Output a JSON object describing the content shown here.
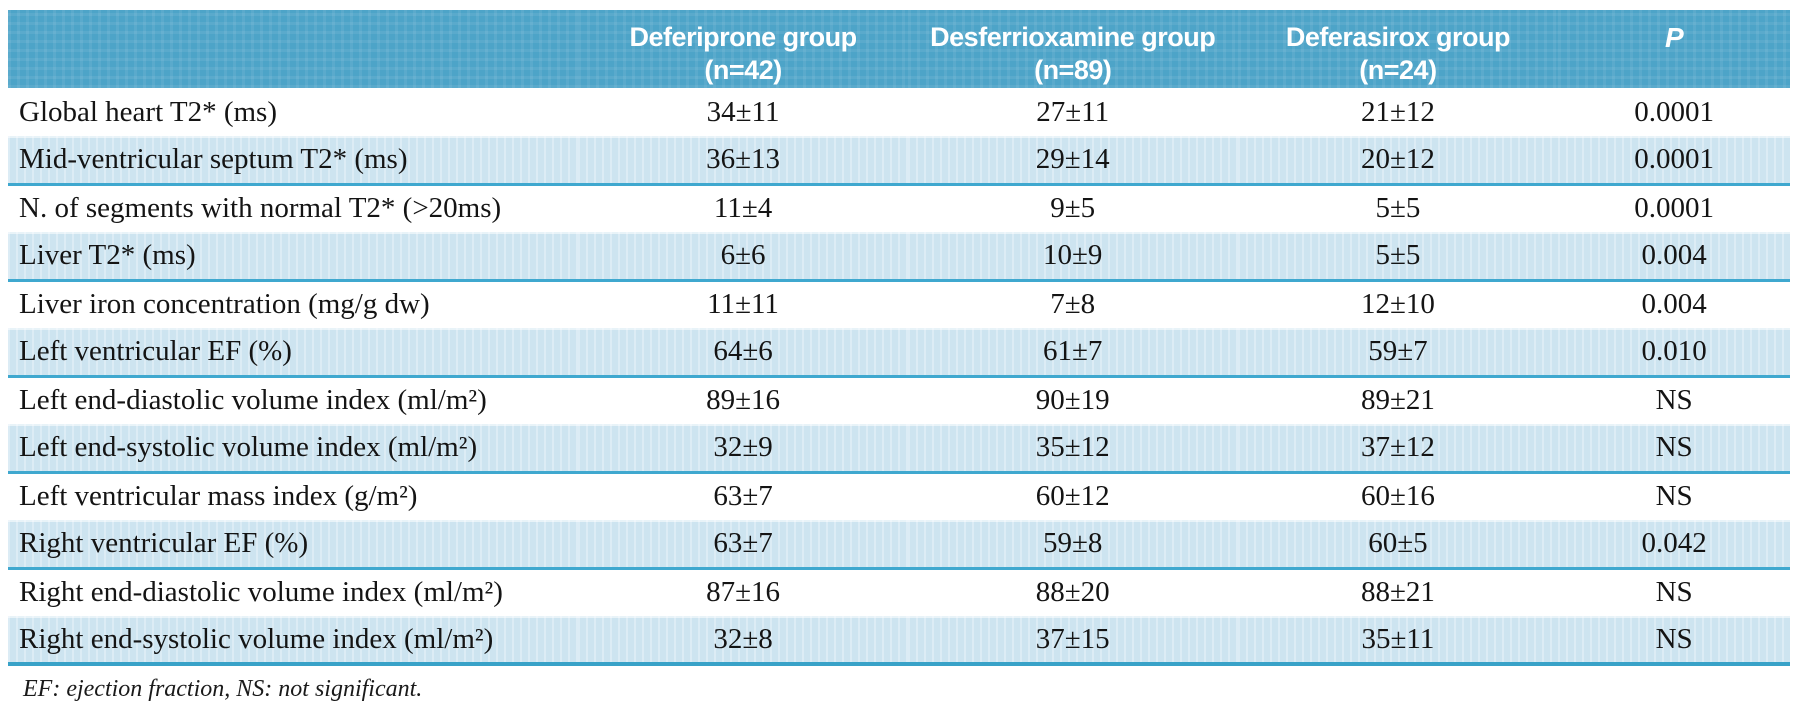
{
  "header": {
    "columns": [
      {
        "label": "Deferiprone group",
        "sub": "(n=42)"
      },
      {
        "label": "Desferrioxamine group",
        "sub": "(n=89)"
      },
      {
        "label": "Deferasirox group",
        "sub": "(n=24)"
      },
      {
        "label": "P",
        "sub": ""
      }
    ]
  },
  "rows": [
    {
      "label": "Global heart T2* (ms)",
      "deferiprone": "34±11",
      "desferrioxamine": "27±11",
      "deferasirox": "21±12",
      "p": "0.0001"
    },
    {
      "label": "Mid-ventricular septum T2* (ms)",
      "deferiprone": "36±13",
      "desferrioxamine": "29±14",
      "deferasirox": "20±12",
      "p": "0.0001"
    },
    {
      "label": "N. of segments with normal T2* (>20ms)",
      "deferiprone": "11±4",
      "desferrioxamine": "9±5",
      "deferasirox": "5±5",
      "p": "0.0001"
    },
    {
      "label": "Liver T2* (ms)",
      "deferiprone": "6±6",
      "desferrioxamine": "10±9",
      "deferasirox": "5±5",
      "p": "0.004"
    },
    {
      "label": "Liver iron concentration (mg/g dw)",
      "deferiprone": "11±11",
      "desferrioxamine": "7±8",
      "deferasirox": "12±10",
      "p": "0.004"
    },
    {
      "label": "Left ventricular EF (%)",
      "deferiprone": "64±6",
      "desferrioxamine": "61±7",
      "deferasirox": "59±7",
      "p": "0.010"
    },
    {
      "label": "Left end-diastolic volume index (ml/m²)",
      "deferiprone": "89±16",
      "desferrioxamine": "90±19",
      "deferasirox": "89±21",
      "p": "NS"
    },
    {
      "label": "Left end-systolic volume index (ml/m²)",
      "deferiprone": "32±9",
      "desferrioxamine": "35±12",
      "deferasirox": "37±12",
      "p": "NS"
    },
    {
      "label": "Left ventricular mass index (g/m²)",
      "deferiprone": "63±7",
      "desferrioxamine": "60±12",
      "deferasirox": "60±16",
      "p": "NS"
    },
    {
      "label": "Right ventricular EF (%)",
      "deferiprone": "63±7",
      "desferrioxamine": "59±8",
      "deferasirox": "60±5",
      "p": "0.042"
    },
    {
      "label": "Right end-diastolic volume index (ml/m²)",
      "deferiprone": "87±16",
      "desferrioxamine": "88±20",
      "deferasirox": "88±21",
      "p": "NS"
    },
    {
      "label": "Right end-systolic volume index (ml/m²)",
      "deferiprone": "32±8",
      "desferrioxamine": "37±15",
      "deferasirox": "35±11",
      "p": "NS"
    }
  ],
  "footnote": "EF: ejection fraction, NS: not significant.",
  "colors": {
    "header_bg": "#4da4c8",
    "row_shade": "#cde4f0",
    "divider": "#3fa8cf",
    "header_text": "#ffffff",
    "body_text": "#141414"
  }
}
